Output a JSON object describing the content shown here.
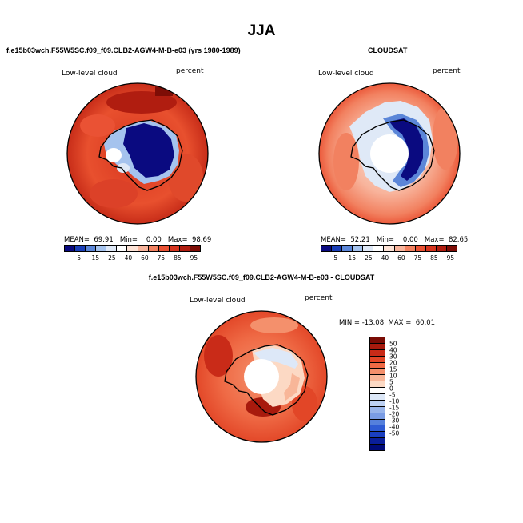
{
  "title": "JJA",
  "panel_left": {
    "header": "f.e15b03wch.F55W5SC.f09_f09.CLB2-AGW4-M-B-e03 (yrs 1980-1989)",
    "label": "Low-level cloud",
    "units": "percent",
    "stats": "MEAN=  69.91   Min=    0.00   Max=  98.69"
  },
  "panel_right": {
    "header": "CLOUDSAT",
    "label": "Low-level cloud",
    "units": "percent",
    "stats": "MEAN=  52.21   Min=    0.00   Max=  82.65"
  },
  "panel_diff": {
    "header": "f.e15b03wch.F55W5SC.f09_f09.CLB2-AGW4-M-B-e03 - CLOUDSAT",
    "label": "Low-level cloud",
    "units": "percent",
    "stats": "MIN = -13.08  MAX =  60.01"
  },
  "abs_colorbar": {
    "colors": [
      "#0a0a80",
      "#1a3fb8",
      "#5b86d8",
      "#a5c3ee",
      "#dfe9f7",
      "#ffffff",
      "#fde3d6",
      "#f8b49c",
      "#f28160",
      "#ea5234",
      "#d6341e",
      "#b01d10",
      "#7e0d06"
    ],
    "ticks": [
      "5",
      "15",
      "25",
      "40",
      "60",
      "75",
      "85",
      "95"
    ]
  },
  "diff_colorbar": {
    "colors": [
      "#7a0c05",
      "#a81a0d",
      "#c92b18",
      "#e24627",
      "#ef6a45",
      "#f4906c",
      "#f8b698",
      "#fcd9c4",
      "#ffffff",
      "#dde8f8",
      "#bcd0f2",
      "#98b4ea",
      "#7a9ce4",
      "#5580dc",
      "#2f5cd4",
      "#1a3fc0",
      "#0a1e9a",
      "#000a78"
    ],
    "ticks": [
      "50",
      "40",
      "30",
      "20",
      "15",
      "10",
      "5",
      "0",
      "-5",
      "-10",
      "-15",
      "-20",
      "-30",
      "-40",
      "-50"
    ]
  }
}
